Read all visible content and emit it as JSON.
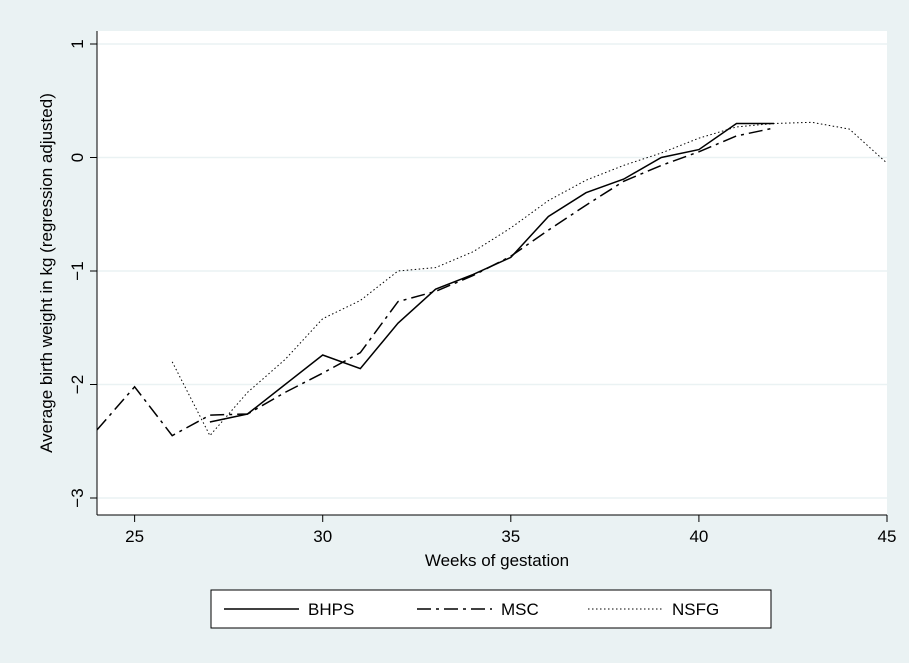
{
  "chart_data": {
    "type": "line",
    "title": "",
    "xlabel": "Weeks of gestation",
    "ylabel": "Average birth weight in kg (regression adjusted)",
    "xlim": [
      24,
      45
    ],
    "ylim": [
      -3,
      1
    ],
    "xticks": [
      25,
      30,
      35,
      40,
      45
    ],
    "yticks": [
      -3,
      -2,
      -1,
      0,
      1
    ],
    "grid": true,
    "legend_position": "bottom",
    "colors": {
      "background": "#eaf2f3",
      "plot_background": "#ffffff",
      "gridline": "#eaf2f3",
      "line": "#000000"
    },
    "series": [
      {
        "name": "BHPS",
        "style": "solid",
        "x": [
          27,
          28,
          29,
          30,
          31,
          32,
          33,
          34,
          35,
          36,
          37,
          38,
          39,
          40,
          41,
          42
        ],
        "y": [
          -2.33,
          -2.26,
          -2.0,
          -1.74,
          -1.86,
          -1.46,
          -1.16,
          -1.03,
          -0.88,
          -0.52,
          -0.31,
          -0.19,
          0.0,
          0.07,
          0.3,
          0.3
        ]
      },
      {
        "name": "MSC",
        "style": "dashdot",
        "x": [
          24,
          25,
          26,
          27,
          28,
          29,
          30,
          31,
          32,
          33,
          34,
          35,
          36,
          37,
          38,
          39,
          40,
          41,
          42
        ],
        "y": [
          -2.4,
          -2.02,
          -2.45,
          -2.27,
          -2.26,
          -2.07,
          -1.9,
          -1.72,
          -1.27,
          -1.18,
          -1.04,
          -0.87,
          -0.64,
          -0.42,
          -0.21,
          -0.07,
          0.05,
          0.19,
          0.26
        ]
      },
      {
        "name": "NSFG",
        "style": "dotted",
        "x": [
          26,
          27,
          28,
          29,
          30,
          31,
          32,
          33,
          34,
          35,
          36,
          37,
          38,
          39,
          40,
          41,
          42,
          43,
          44,
          45
        ],
        "y": [
          -1.8,
          -2.45,
          -2.07,
          -1.78,
          -1.42,
          -1.26,
          -1.0,
          -0.97,
          -0.83,
          -0.62,
          -0.38,
          -0.2,
          -0.07,
          0.04,
          0.17,
          0.27,
          0.3,
          0.31,
          0.25,
          -0.05
        ]
      }
    ]
  }
}
